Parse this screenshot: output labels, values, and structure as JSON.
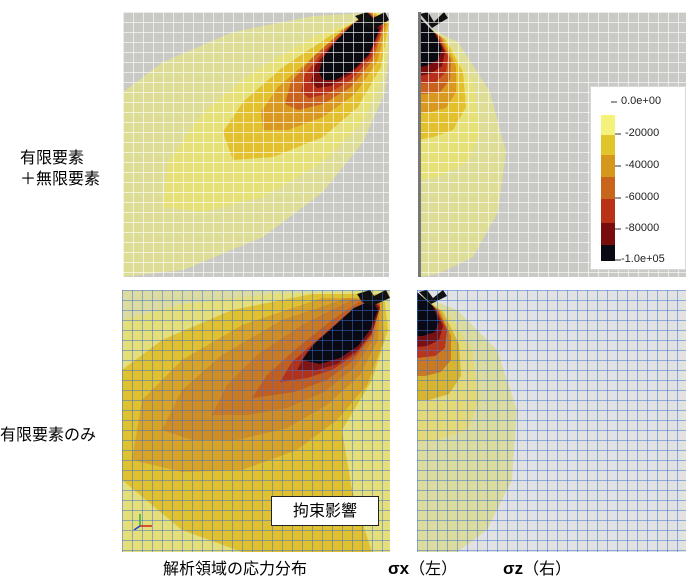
{
  "row_labels": {
    "top_line1": "有限要素",
    "top_line2": "＋無限要素",
    "bottom": "有限要素のみ"
  },
  "legend": {
    "ticks": [
      "0.0e+00",
      "-20000",
      "-40000",
      "-60000",
      "-80000",
      "-1.0e+05"
    ],
    "colors": [
      "#f4f27a",
      "#e2c52a",
      "#d7961c",
      "#c9641d",
      "#b73218",
      "#7a0c0c",
      "#0a0a14"
    ]
  },
  "callout": "拘束影響",
  "caption": {
    "prefix": "解析領域の応力分布",
    "sx": "σx",
    "sx_side": "（左）",
    "sz": "σz",
    "sz_side": "（右）"
  }
}
